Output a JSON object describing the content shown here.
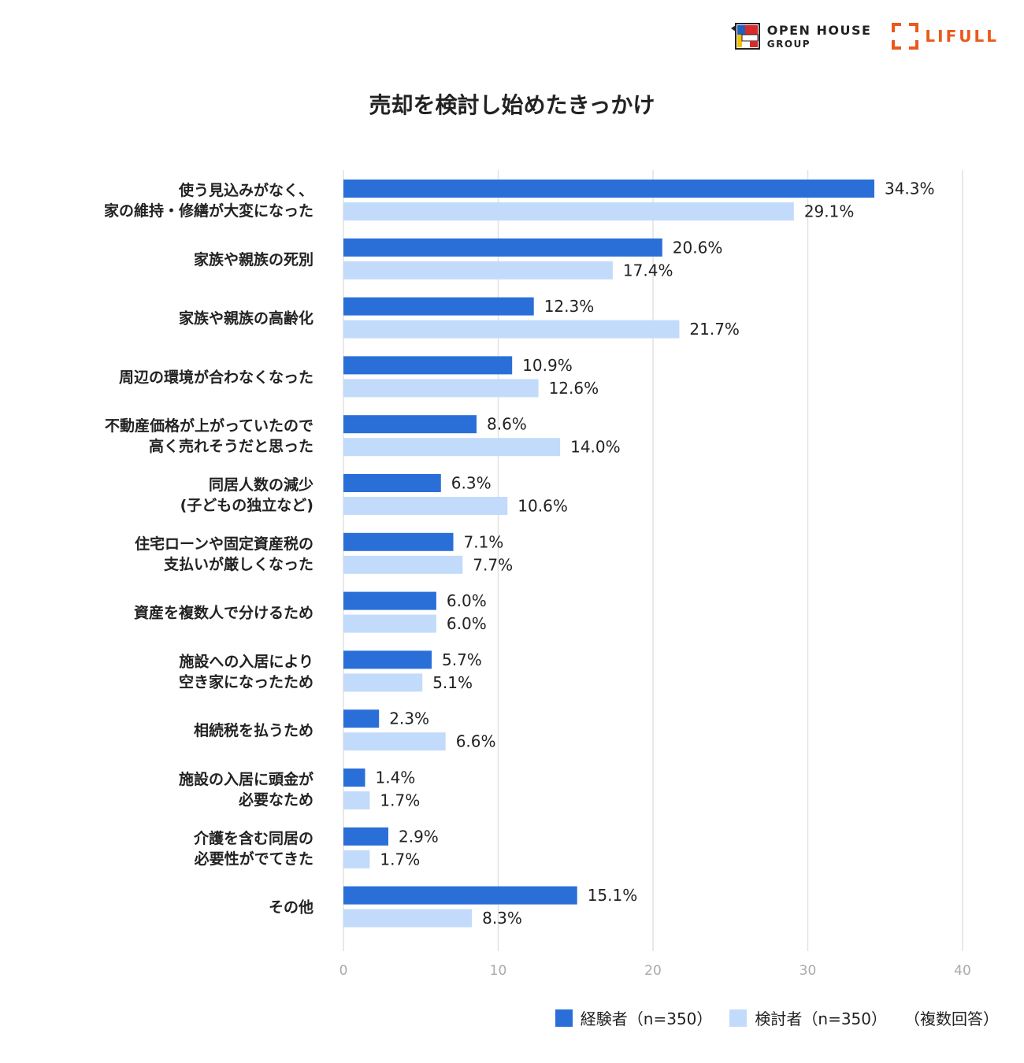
{
  "logos": {
    "openhouse_line1": "OPEN HOUSE",
    "openhouse_line2": "GROUP",
    "lifull": "LIFULL"
  },
  "colors": {
    "series1": "#2a6fd8",
    "series2": "#c3dbfa",
    "grid": "#e2e2e2",
    "lifull": "#ea5a1c"
  },
  "chart_data": {
    "type": "bar",
    "orientation": "horizontal",
    "title": "売却を検討し始めたきっかけ",
    "categories": [
      [
        "使う見込みがなく、",
        "家の維持・修繕が大変になった"
      ],
      [
        "家族や親族の死別"
      ],
      [
        "家族や親族の高齢化"
      ],
      [
        "周辺の環境が合わなくなった"
      ],
      [
        "不動産価格が上がっていたので",
        "高く売れそうだと思った"
      ],
      [
        "同居人数の減少",
        "(子どもの独立など)"
      ],
      [
        "住宅ローンや固定資産税の",
        "支払いが厳しくなった"
      ],
      [
        "資産を複数人で分けるため"
      ],
      [
        "施設への入居により",
        "空き家になったため"
      ],
      [
        "相続税を払うため"
      ],
      [
        "施設の入居に頭金が",
        "必要なため"
      ],
      [
        "介護を含む同居の",
        "必要性がでてきた"
      ],
      [
        "その他"
      ]
    ],
    "series": [
      {
        "name": "経験者（n=350）",
        "values": [
          34.3,
          20.6,
          12.3,
          10.9,
          8.6,
          6.3,
          7.1,
          6.0,
          5.7,
          2.3,
          1.4,
          2.9,
          15.1
        ],
        "labels": [
          "34.3%",
          "20.6%",
          "12.3%",
          "10.9%",
          "8.6%",
          "6.3%",
          "7.1%",
          "6.0%",
          "5.7%",
          "2.3%",
          "1.4%",
          "2.9%",
          "15.1%"
        ]
      },
      {
        "name": "検討者（n=350）",
        "values": [
          29.1,
          17.4,
          21.7,
          12.6,
          14.0,
          10.6,
          7.7,
          6.0,
          5.1,
          6.6,
          1.7,
          1.7,
          8.3
        ],
        "labels": [
          "29.1%",
          "17.4%",
          "21.7%",
          "12.6%",
          "14.0%",
          "10.6%",
          "7.7%",
          "6.0%",
          "5.1%",
          "6.6%",
          "1.7%",
          "1.7%",
          "8.3%"
        ]
      }
    ],
    "xlim": [
      0,
      40
    ],
    "xticks": [
      "0",
      "10",
      "20",
      "30",
      "40"
    ],
    "grid": true,
    "legend_position": "bottom-right",
    "note": "（複数回答）"
  }
}
